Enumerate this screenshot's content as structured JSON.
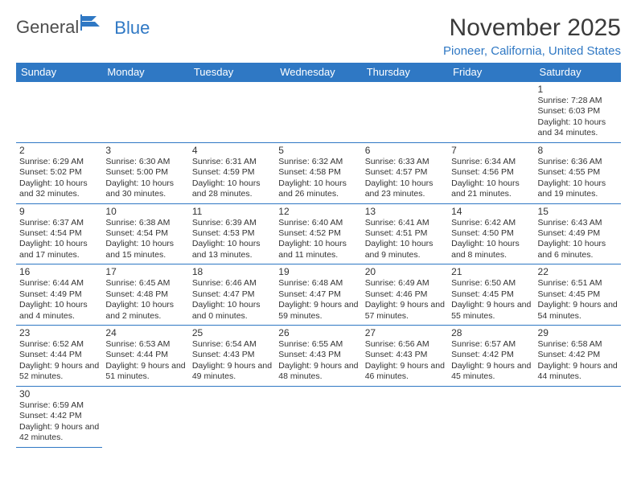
{
  "logo": {
    "text1": "General",
    "text2": "Blue"
  },
  "title": "November 2025",
  "location": "Pioneer, California, United States",
  "header_bg": "#2f78c4",
  "header_text": "#ffffff",
  "border_color": "#2f78c4",
  "days": [
    "Sunday",
    "Monday",
    "Tuesday",
    "Wednesday",
    "Thursday",
    "Friday",
    "Saturday"
  ],
  "weeks": [
    [
      null,
      null,
      null,
      null,
      null,
      null,
      {
        "n": "1",
        "sr": "7:28 AM",
        "ss": "6:03 PM",
        "dl": "10 hours and 34 minutes."
      }
    ],
    [
      {
        "n": "2",
        "sr": "6:29 AM",
        "ss": "5:02 PM",
        "dl": "10 hours and 32 minutes."
      },
      {
        "n": "3",
        "sr": "6:30 AM",
        "ss": "5:00 PM",
        "dl": "10 hours and 30 minutes."
      },
      {
        "n": "4",
        "sr": "6:31 AM",
        "ss": "4:59 PM",
        "dl": "10 hours and 28 minutes."
      },
      {
        "n": "5",
        "sr": "6:32 AM",
        "ss": "4:58 PM",
        "dl": "10 hours and 26 minutes."
      },
      {
        "n": "6",
        "sr": "6:33 AM",
        "ss": "4:57 PM",
        "dl": "10 hours and 23 minutes."
      },
      {
        "n": "7",
        "sr": "6:34 AM",
        "ss": "4:56 PM",
        "dl": "10 hours and 21 minutes."
      },
      {
        "n": "8",
        "sr": "6:36 AM",
        "ss": "4:55 PM",
        "dl": "10 hours and 19 minutes."
      }
    ],
    [
      {
        "n": "9",
        "sr": "6:37 AM",
        "ss": "4:54 PM",
        "dl": "10 hours and 17 minutes."
      },
      {
        "n": "10",
        "sr": "6:38 AM",
        "ss": "4:54 PM",
        "dl": "10 hours and 15 minutes."
      },
      {
        "n": "11",
        "sr": "6:39 AM",
        "ss": "4:53 PM",
        "dl": "10 hours and 13 minutes."
      },
      {
        "n": "12",
        "sr": "6:40 AM",
        "ss": "4:52 PM",
        "dl": "10 hours and 11 minutes."
      },
      {
        "n": "13",
        "sr": "6:41 AM",
        "ss": "4:51 PM",
        "dl": "10 hours and 9 minutes."
      },
      {
        "n": "14",
        "sr": "6:42 AM",
        "ss": "4:50 PM",
        "dl": "10 hours and 8 minutes."
      },
      {
        "n": "15",
        "sr": "6:43 AM",
        "ss": "4:49 PM",
        "dl": "10 hours and 6 minutes."
      }
    ],
    [
      {
        "n": "16",
        "sr": "6:44 AM",
        "ss": "4:49 PM",
        "dl": "10 hours and 4 minutes."
      },
      {
        "n": "17",
        "sr": "6:45 AM",
        "ss": "4:48 PM",
        "dl": "10 hours and 2 minutes."
      },
      {
        "n": "18",
        "sr": "6:46 AM",
        "ss": "4:47 PM",
        "dl": "10 hours and 0 minutes."
      },
      {
        "n": "19",
        "sr": "6:48 AM",
        "ss": "4:47 PM",
        "dl": "9 hours and 59 minutes."
      },
      {
        "n": "20",
        "sr": "6:49 AM",
        "ss": "4:46 PM",
        "dl": "9 hours and 57 minutes."
      },
      {
        "n": "21",
        "sr": "6:50 AM",
        "ss": "4:45 PM",
        "dl": "9 hours and 55 minutes."
      },
      {
        "n": "22",
        "sr": "6:51 AM",
        "ss": "4:45 PM",
        "dl": "9 hours and 54 minutes."
      }
    ],
    [
      {
        "n": "23",
        "sr": "6:52 AM",
        "ss": "4:44 PM",
        "dl": "9 hours and 52 minutes."
      },
      {
        "n": "24",
        "sr": "6:53 AM",
        "ss": "4:44 PM",
        "dl": "9 hours and 51 minutes."
      },
      {
        "n": "25",
        "sr": "6:54 AM",
        "ss": "4:43 PM",
        "dl": "9 hours and 49 minutes."
      },
      {
        "n": "26",
        "sr": "6:55 AM",
        "ss": "4:43 PM",
        "dl": "9 hours and 48 minutes."
      },
      {
        "n": "27",
        "sr": "6:56 AM",
        "ss": "4:43 PM",
        "dl": "9 hours and 46 minutes."
      },
      {
        "n": "28",
        "sr": "6:57 AM",
        "ss": "4:42 PM",
        "dl": "9 hours and 45 minutes."
      },
      {
        "n": "29",
        "sr": "6:58 AM",
        "ss": "4:42 PM",
        "dl": "9 hours and 44 minutes."
      }
    ],
    [
      {
        "n": "30",
        "sr": "6:59 AM",
        "ss": "4:42 PM",
        "dl": "9 hours and 42 minutes."
      },
      null,
      null,
      null,
      null,
      null,
      null
    ]
  ],
  "labels": {
    "sunrise": "Sunrise:",
    "sunset": "Sunset:",
    "daylight": "Daylight:"
  }
}
